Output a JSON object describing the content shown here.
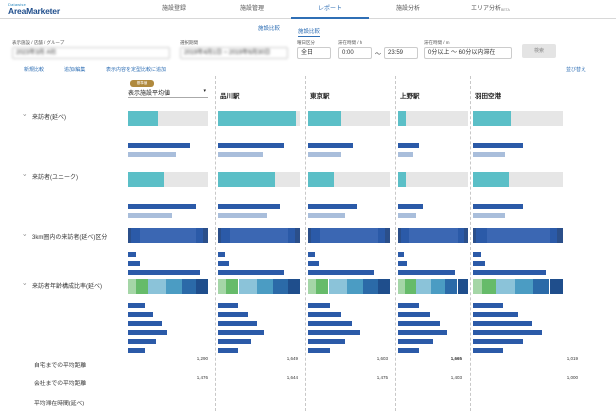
{
  "app": {
    "brand_small": "Datawise",
    "brand": "AreaMarketer"
  },
  "nav": [
    {
      "label": "施設登録"
    },
    {
      "label": "施設管理"
    },
    {
      "label": "レポート"
    },
    {
      "label": "施設分析"
    },
    {
      "label": "エリア分析",
      "badge": "BETA"
    }
  ],
  "subtabs": {
    "compare": "施設比較",
    "facility": "施設比較"
  },
  "filters": {
    "group_label": "表示施設 / 店舗 / グループ",
    "group_value": "2023年3月 A社",
    "period_label": "選択期間",
    "period_value": "2019年4月1日 ~ 2019年6月30日",
    "day_label": "曜日区分",
    "day_value": "全日",
    "time_label": "滞在時間 / h",
    "time_from": "0:00",
    "time_sep": "〜",
    "time_to": "23:59",
    "stay_label": "滞在時間 / m",
    "stay_value": "0分以上 〜 60分以内滞在",
    "search": "検索"
  },
  "links": {
    "new": "新規比較",
    "add": "追加/編集",
    "save": "表示内容を定型比較に追加",
    "sort": "並び替え"
  },
  "columns": {
    "base_badge": "基準値",
    "base_select": "表示施設平均値",
    "c1": "品川駅",
    "c2": "東京駅",
    "c3": "上野駅",
    "c4": "羽田空港"
  },
  "sections": {
    "visitors": "来訪者(延べ)",
    "unique": "来訪者(ユニーク)",
    "within3km": "3km圏内の来訪者(延べ)区分",
    "age": "来訪者年齢構成比率(延べ)",
    "home_dist": "自宅までの平均距離",
    "work_dist": "会社までの平均距離",
    "avg_stay": "平均滞在時間(延べ)"
  },
  "metric_values": {
    "home": [
      "1,290",
      "1,649",
      "1,603",
      "1,665",
      "1,019"
    ],
    "work": [
      "1,476",
      "1,644",
      "1,475",
      "1,403",
      "1,000"
    ]
  },
  "colors": {
    "accent": "#2f6fb5",
    "teal": "#5bbfc7",
    "navy": "#2b5aa8",
    "light": "#a9bedb",
    "gray": "#e6e6e6",
    "green": "#9ccc65",
    "down": "#d23b4e"
  }
}
